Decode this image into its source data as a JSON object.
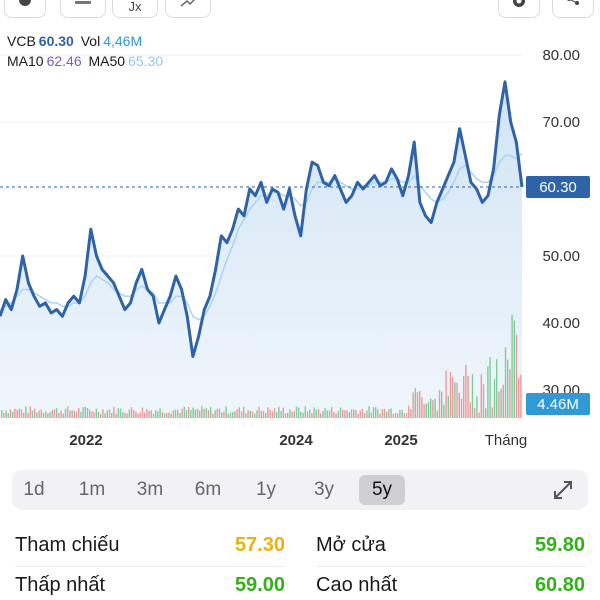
{
  "legend": {
    "symbol": "VCB",
    "price": "60.30",
    "vol_label": "Vol",
    "vol_value": "4,46M",
    "ma10_label": "MA10",
    "ma10_value": "62.46",
    "ma50_label": "MA50",
    "ma50_value": "65.30"
  },
  "toolbar": {
    "fx_label": "Jx"
  },
  "chart_data": {
    "type": "line",
    "series": [
      {
        "name": "VCB",
        "note": "closing price, approx.",
        "values": [
          41,
          43.5,
          42,
          45,
          50,
          46,
          44,
          42.5,
          43,
          41.5,
          42,
          41,
          43,
          44,
          43,
          47,
          54,
          50,
          48,
          47,
          46,
          44,
          42,
          43,
          46,
          48,
          45,
          44,
          40,
          42,
          44,
          47,
          45,
          41,
          35,
          38,
          42,
          44,
          48,
          53,
          52,
          54,
          57,
          56,
          60,
          59,
          61,
          58,
          60,
          59.5,
          57,
          60,
          56,
          53,
          60,
          64,
          63.5,
          61,
          60.5,
          62,
          60,
          58,
          59,
          61,
          60,
          61,
          62,
          60.5,
          61,
          63,
          61.5,
          59,
          62,
          67,
          58,
          56,
          55,
          58,
          60,
          62,
          64,
          69,
          65,
          61,
          60,
          58,
          59,
          63,
          71,
          76,
          70,
          67,
          60.3
        ]
      },
      {
        "name": "MA50",
        "note": "smoothed",
        "values": [
          42,
          42.5,
          43,
          44,
          45,
          45,
          44.5,
          44,
          43.5,
          43,
          43,
          42.5,
          42.5,
          43,
          43,
          44,
          46,
          47,
          46.5,
          46,
          45,
          44.5,
          44,
          44,
          45,
          45.5,
          45,
          44.5,
          43,
          43,
          43,
          44,
          44,
          43,
          41,
          40.5,
          41,
          42.5,
          44.5,
          47,
          49.5,
          51.5,
          54,
          55.5,
          57,
          58,
          59,
          59,
          59.5,
          59.5,
          59,
          59,
          58.5,
          57.5,
          58,
          60,
          61,
          61,
          61,
          61.5,
          61,
          60.5,
          60,
          60,
          60.5,
          60.5,
          61,
          61,
          61,
          61.5,
          61.5,
          61,
          61,
          62,
          60.5,
          59.5,
          58.5,
          58,
          58.5,
          59.5,
          61,
          63,
          63.5,
          62.5,
          61.5,
          61,
          61,
          62,
          64,
          65,
          65,
          64.5,
          65.3
        ]
      }
    ],
    "volume_note": "daily volume bars, green up / red down",
    "y_ticks": [
      "80.00",
      "70.00",
      "60.00",
      "50.00",
      "40.00",
      "30.00"
    ],
    "ylim": [
      28,
      83
    ],
    "x_ticks": [
      "2022",
      "2024",
      "2025",
      "Tháng"
    ],
    "current_price_label": "60.30",
    "current_volume_label": "4.46M",
    "colors": {
      "line": "#2f63a8",
      "ma50": "#a8d4f4",
      "fill": "#dbe9f6",
      "price_tag": "#2f63a8",
      "vol_tag": "#2f9ad6",
      "up": "#6bc58a",
      "down": "#e98a8a"
    }
  },
  "periods": {
    "items": [
      "1d",
      "1m",
      "3m",
      "6m",
      "1y",
      "3y",
      "5y"
    ],
    "active": "5y"
  },
  "stats": {
    "ref_label": "Tham chiếu",
    "ref_value": "57.30",
    "ref_color": "#e9b20d",
    "open_label": "Mở cửa",
    "open_value": "59.80",
    "open_color": "#33b11a",
    "low_label": "Thấp nhất",
    "low_value": "59.00",
    "low_color": "#33b11a",
    "high_label": "Cao nhất",
    "high_value": "60.80",
    "high_color": "#33b11a"
  }
}
